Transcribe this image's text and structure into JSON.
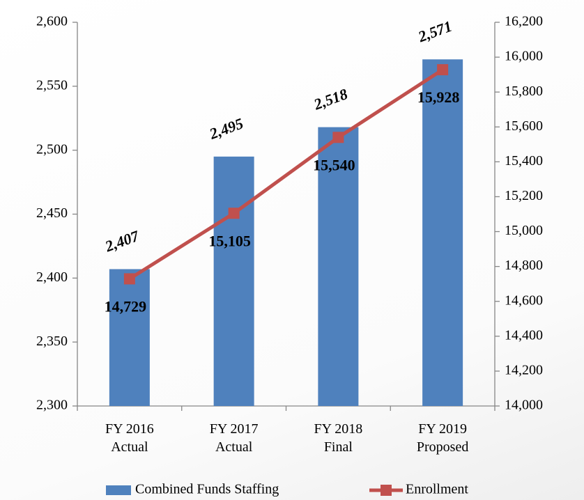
{
  "chart_data": {
    "type": "bar",
    "categories": [
      "FY 2016 Actual",
      "FY 2017 Actual",
      "FY 2018 Final",
      "FY 2019 Proposed"
    ],
    "series": [
      {
        "name": "Combined Funds Staffing",
        "type": "bar",
        "color": "#4f81bd",
        "values": [
          2407,
          2495,
          2518,
          2571
        ],
        "value_labels": [
          "2,407",
          "2,495",
          "2,518",
          "2,571"
        ]
      },
      {
        "name": "Enrollment",
        "type": "line",
        "axis": "y2",
        "color": "#c0504d",
        "values": [
          14729,
          15105,
          15540,
          15928
        ],
        "value_labels": [
          "14,729",
          "15,105",
          "15,540",
          "15,928"
        ]
      }
    ],
    "ylim": [
      2300,
      2600
    ],
    "yticks": [
      {
        "value": 2300,
        "label": "2,300"
      },
      {
        "value": 2350,
        "label": "2,350"
      },
      {
        "value": 2400,
        "label": "2,400"
      },
      {
        "value": 2450,
        "label": "2,450"
      },
      {
        "value": 2500,
        "label": "2,500"
      },
      {
        "value": 2550,
        "label": "2,550"
      },
      {
        "value": 2600,
        "label": "2,600"
      }
    ],
    "y2lim": [
      14000,
      16200
    ],
    "y2ticks": [
      {
        "value": 14000,
        "label": "14,000"
      },
      {
        "value": 14200,
        "label": "14,200"
      },
      {
        "value": 14400,
        "label": "14,400"
      },
      {
        "value": 14600,
        "label": "14,600"
      },
      {
        "value": 14800,
        "label": "14,800"
      },
      {
        "value": 15000,
        "label": "15,000"
      },
      {
        "value": 15200,
        "label": "15,200"
      },
      {
        "value": 15400,
        "label": "15,400"
      },
      {
        "value": 15600,
        "label": "15,600"
      },
      {
        "value": 15800,
        "label": "15,800"
      },
      {
        "value": 16000,
        "label": "16,000"
      },
      {
        "value": 16200,
        "label": "16,200"
      }
    ],
    "legend": "bottom"
  }
}
